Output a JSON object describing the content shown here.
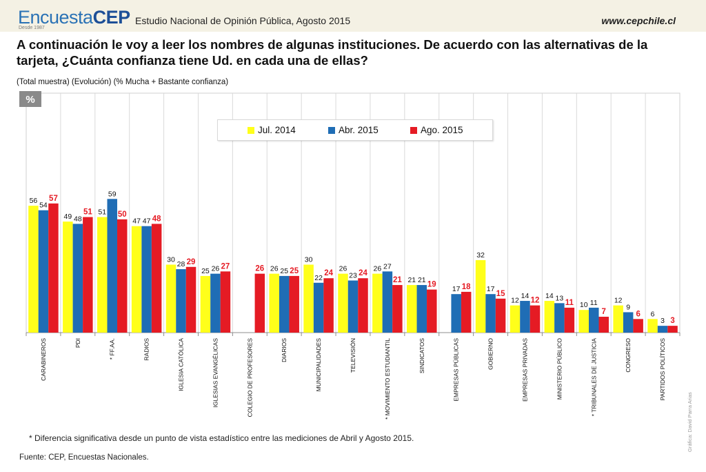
{
  "header": {
    "logo_light": "Encuesta",
    "logo_bold": "CEP",
    "logo_sub": "Desde 1987",
    "study": "Estudio Nacional de Opinión Pública, Agosto 2015",
    "url": "www.cepchile.cl"
  },
  "question": "A continuación le voy a leer los nombres de algunas instituciones. De acuerdo con las alternativas de la tarjeta, ¿Cuánta confianza tiene Ud. en cada una de ellas?",
  "subtitle": "(Total muestra) (Evolución) (% Mucha + Bastante confianza)",
  "unit_badge": "%",
  "footnote": "* Diferencia significativa desde un punto de vista estadístico entre las mediciones de Abril y Agosto 2015.",
  "source": "Fuente: CEP, Encuestas Nacionales.",
  "credit": "Gráfica: David Parra Arias",
  "chart_data": {
    "type": "bar",
    "ylim": [
      0,
      60
    ],
    "grid": "vertical",
    "legend_position": "top-center",
    "categories": [
      "CARABINEROS",
      "PDI",
      "* FF.AA.",
      "RADIOS",
      "IGLESIA CATÓLICA",
      "IGLESIAS EVANGÉLICAS",
      "COLEGIO DE PROFESORES",
      "DIARIOS",
      "MUNICIPALIDADES",
      "TELEVISIÓN",
      "* MOVIMIENTO ESTUDIANTIL",
      "SINDICATOS",
      "EMPRESAS PÚBLICAS",
      "GOBIERNO",
      "EMPRESAS PRIVADAS",
      "MINISTERIO PÚBLICO",
      "* TRIBUNALES DE JUSTICIA",
      "CONGRESO",
      "PARTIDOS POLÍTICOS"
    ],
    "series": [
      {
        "name": "Jul. 2014",
        "color": "#ffff1a",
        "values": [
          56,
          49,
          51,
          47,
          30,
          25,
          null,
          26,
          30,
          26,
          26,
          21,
          null,
          32,
          12,
          14,
          10,
          12,
          6
        ]
      },
      {
        "name": "Abr. 2015",
        "color": "#1f6db5",
        "values": [
          54,
          48,
          59,
          47,
          28,
          26,
          null,
          25,
          22,
          23,
          27,
          21,
          17,
          17,
          14,
          13,
          11,
          9,
          3
        ]
      },
      {
        "name": "Ago. 2015",
        "color": "#e51b24",
        "values": [
          57,
          51,
          50,
          48,
          29,
          27,
          26,
          25,
          24,
          24,
          21,
          19,
          18,
          15,
          12,
          11,
          7,
          6,
          3
        ]
      }
    ]
  }
}
